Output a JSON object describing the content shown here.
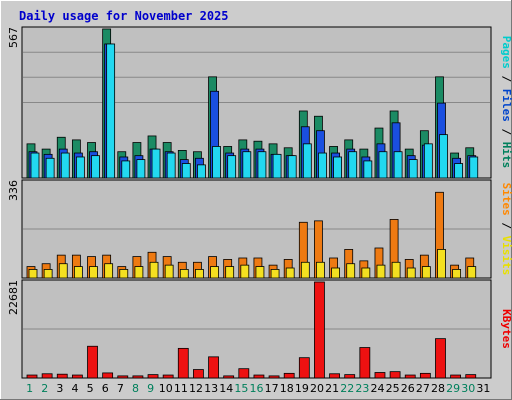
{
  "chart_data": {
    "type": "bar",
    "title": "Daily usage for November 2025",
    "categories": [
      "1",
      "2",
      "3",
      "4",
      "5",
      "6",
      "7",
      "8",
      "9",
      "10",
      "11",
      "12",
      "13",
      "14",
      "15",
      "16",
      "17",
      "18",
      "19",
      "20",
      "21",
      "22",
      "23",
      "24",
      "25",
      "26",
      "27",
      "28",
      "29",
      "30",
      "31"
    ],
    "weekend_days": [
      "1",
      "2",
      "8",
      "9",
      "15",
      "16",
      "22",
      "23",
      "29",
      "30"
    ],
    "panels": [
      {
        "id": "hits",
        "ymax_label": "567",
        "ylim": [
          0,
          567
        ],
        "legend": [
          {
            "text": "Pages",
            "color": "#00cccc"
          },
          {
            "text": " / ",
            "color": "#000000"
          },
          {
            "text": "Files",
            "color": "#0044cc"
          },
          {
            "text": " / ",
            "color": "#000000"
          },
          {
            "text": "Hits",
            "color": "#00805c"
          }
        ],
        "series": [
          {
            "name": "Hits",
            "color": "#1b8b64",
            "values": [
              130,
              110,
              155,
              145,
              135,
              567,
              100,
              135,
              160,
              135,
              105,
              100,
              385,
              120,
              145,
              140,
              130,
              115,
              255,
              235,
              120,
              145,
              110,
              190,
              255,
              110,
              180,
              385,
              95,
              115,
              0
            ]
          },
          {
            "name": "Files",
            "color": "#1a4fe0",
            "values": [
              100,
              90,
              110,
              95,
              100,
              510,
              80,
              85,
              110,
              100,
              70,
              75,
              330,
              95,
              110,
              110,
              90,
              85,
              195,
              180,
              95,
              110,
              80,
              130,
              210,
              85,
              125,
              285,
              75,
              85,
              0
            ]
          },
          {
            "name": "Pages",
            "color": "#22d8f0",
            "values": [
              95,
              75,
              95,
              80,
              85,
              510,
              65,
              70,
              110,
              95,
              55,
              50,
              120,
              85,
              100,
              100,
              90,
              85,
              130,
              95,
              80,
              100,
              65,
              100,
              100,
              70,
              130,
              165,
              55,
              80,
              0
            ]
          }
        ]
      },
      {
        "id": "visits",
        "ymax_label": "336",
        "ylim": [
          0,
          336
        ],
        "legend": [
          {
            "text": "Sites",
            "color": "#ff8800"
          },
          {
            "text": " / ",
            "color": "#000000"
          },
          {
            "text": "Visits",
            "color": "#e8e000"
          }
        ],
        "series": [
          {
            "name": "Sites",
            "color": "#ee7a12",
            "values": [
              40,
              50,
              80,
              80,
              75,
              80,
              40,
              75,
              90,
              75,
              55,
              55,
              75,
              65,
              70,
              70,
              45,
              65,
              195,
              200,
              70,
              100,
              60,
              105,
              205,
              65,
              80,
              300,
              45,
              70,
              0
            ]
          },
          {
            "name": "Visits",
            "color": "#f4e020",
            "values": [
              30,
              30,
              50,
              40,
              40,
              50,
              30,
              40,
              55,
              45,
              30,
              30,
              40,
              40,
              45,
              40,
              30,
              35,
              55,
              55,
              35,
              50,
              35,
              45,
              55,
              35,
              40,
              100,
              30,
              40,
              0
            ]
          }
        ]
      },
      {
        "id": "kbytes",
        "ymax_label": "22681",
        "ylim": [
          0,
          22681
        ],
        "legend": [
          {
            "text": "KBytes",
            "color": "#ee0000"
          }
        ],
        "series": [
          {
            "name": "KBytes",
            "color": "#ee1111",
            "values": [
              700,
              1000,
              900,
              700,
              7500,
              1200,
              500,
              500,
              800,
              700,
              7000,
              2000,
              5000,
              500,
              2200,
              700,
              500,
              1100,
              4800,
              22681,
              1000,
              800,
              7200,
              1300,
              1500,
              700,
              1100,
              9300,
              700,
              800,
              0
            ]
          }
        ]
      }
    ]
  }
}
